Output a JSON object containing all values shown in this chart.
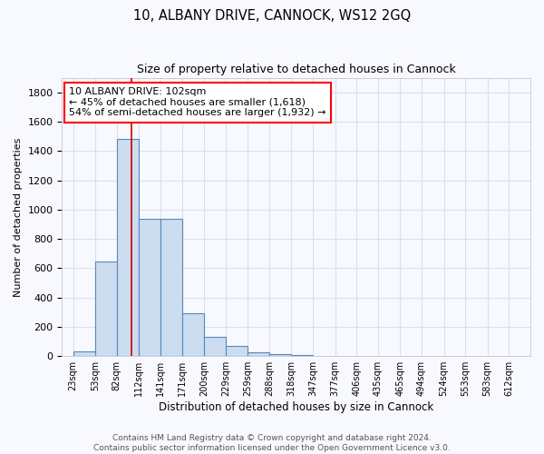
{
  "title1": "10, ALBANY DRIVE, CANNOCK, WS12 2GQ",
  "title2": "Size of property relative to detached houses in Cannock",
  "xlabel": "Distribution of detached houses by size in Cannock",
  "ylabel": "Number of detached properties",
  "bin_edges": [
    23,
    53,
    82,
    112,
    141,
    171,
    200,
    229,
    259,
    288,
    318,
    347,
    377,
    406,
    435,
    465,
    494,
    524,
    553,
    583,
    612,
    641
  ],
  "bar_heights": [
    35,
    645,
    1480,
    935,
    935,
    290,
    130,
    70,
    25,
    15,
    10,
    0,
    0,
    0,
    0,
    0,
    0,
    0,
    0,
    0,
    0,
    0
  ],
  "bar_color": "#ccddf0",
  "bar_edge_color": "#5588bb",
  "bar_linewidth": 0.8,
  "red_line_x": 102,
  "red_line_color": "#cc0000",
  "annotation_text_line1": "10 ALBANY DRIVE: 102sqm",
  "annotation_text_line2": "← 45% of detached houses are smaller (1,618)",
  "annotation_text_line3": "54% of semi-detached houses are larger (1,932) →",
  "ylim": [
    0,
    1900
  ],
  "xlim": [
    8,
    641
  ],
  "background_color": "#f8f9ff",
  "grid_color": "#ddddee",
  "footnote": "Contains HM Land Registry data © Crown copyright and database right 2024.\nContains public sector information licensed under the Open Government Licence v3.0.",
  "tick_labels": [
    "23sqm",
    "53sqm",
    "82sqm",
    "112sqm",
    "141sqm",
    "171sqm",
    "200sqm",
    "229sqm",
    "259sqm",
    "288sqm",
    "318sqm",
    "347sqm",
    "377sqm",
    "406sqm",
    "435sqm",
    "465sqm",
    "494sqm",
    "524sqm",
    "553sqm",
    "583sqm",
    "612sqm"
  ],
  "tick_positions": [
    23,
    53,
    82,
    112,
    141,
    171,
    200,
    229,
    259,
    288,
    318,
    347,
    377,
    406,
    435,
    465,
    494,
    524,
    553,
    583,
    612
  ],
  "yticks": [
    0,
    200,
    400,
    600,
    800,
    1000,
    1200,
    1400,
    1600,
    1800
  ]
}
